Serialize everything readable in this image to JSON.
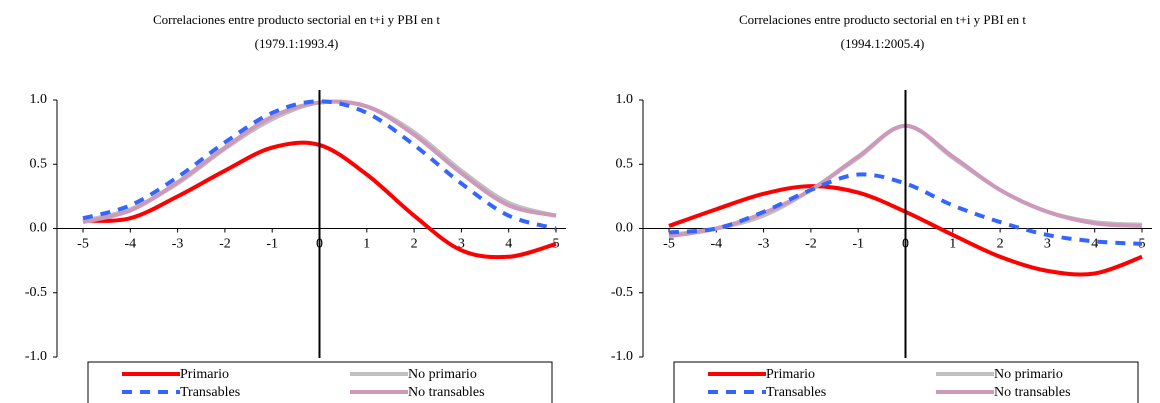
{
  "chart_data": [
    {
      "type": "line",
      "title": "Correlaciones entre producto sectorial en t+i y  PBI en t",
      "subtitle": "(1979.1:1993.4)",
      "x": [
        -5,
        -4,
        -3,
        -2,
        -1,
        0,
        1,
        2,
        3,
        4,
        5
      ],
      "xlim": [
        -5,
        5
      ],
      "xticks": [
        -5,
        -4,
        -3,
        -2,
        -1,
        0,
        1,
        2,
        3,
        4,
        5
      ],
      "ylim": [
        -1,
        1
      ],
      "yticks": [
        {
          "value": 1,
          "label": "1.0"
        },
        0.5,
        {
          "value": 0,
          "label": "0.0"
        },
        -0.5,
        {
          "value": -1,
          "label": "-1.0"
        }
      ],
      "legend": "bottom",
      "series": [
        {
          "name": "Primario",
          "color": "#ff0000",
          "style": "solid",
          "values": [
            0.06,
            0.08,
            0.25,
            0.45,
            0.63,
            0.65,
            0.42,
            0.1,
            -0.17,
            -0.22,
            -0.12
          ]
        },
        {
          "name": "No primario",
          "color": "#c0c0c0",
          "style": "solid",
          "values": [
            0.06,
            0.15,
            0.35,
            0.62,
            0.85,
            0.98,
            0.95,
            0.75,
            0.45,
            0.2,
            0.1
          ]
        },
        {
          "name": "Transables",
          "color": "#3366ff",
          "style": "dashed",
          "values": [
            0.08,
            0.18,
            0.4,
            0.67,
            0.9,
            0.99,
            0.9,
            0.65,
            0.35,
            0.1,
            0.0
          ]
        },
        {
          "name": "No transables",
          "color": "#cc99bb",
          "style": "solid",
          "values": [
            0.05,
            0.14,
            0.36,
            0.63,
            0.87,
            0.98,
            0.95,
            0.73,
            0.43,
            0.18,
            0.1
          ]
        }
      ]
    },
    {
      "type": "line",
      "title": "Correlaciones entre producto sectorial en t+i y  PBI en t",
      "subtitle": "(1994.1:2005.4)",
      "x": [
        -5,
        -4,
        -3,
        -2,
        -1,
        0,
        1,
        2,
        3,
        4,
        5
      ],
      "xlim": [
        -5,
        5
      ],
      "xticks": [
        -5,
        -4,
        -3,
        -2,
        -1,
        0,
        1,
        2,
        3,
        4,
        5
      ],
      "ylim": [
        -1,
        1
      ],
      "yticks": [
        {
          "value": 1,
          "label": "1.0"
        },
        0.5,
        {
          "value": 0,
          "label": "0.0"
        },
        -0.5,
        {
          "value": -1,
          "label": "-1.0"
        }
      ],
      "legend": "bottom",
      "series": [
        {
          "name": "Primario",
          "color": "#ff0000",
          "style": "solid",
          "values": [
            0.02,
            0.15,
            0.27,
            0.33,
            0.28,
            0.13,
            -0.05,
            -0.22,
            -0.33,
            -0.35,
            -0.22
          ]
        },
        {
          "name": "No primario",
          "color": "#c0c0c0",
          "style": "solid",
          "values": [
            -0.05,
            0.0,
            0.1,
            0.3,
            0.55,
            0.8,
            0.55,
            0.3,
            0.13,
            0.05,
            0.03
          ]
        },
        {
          "name": "Transables",
          "color": "#3366ff",
          "style": "dashed",
          "values": [
            -0.03,
            0.0,
            0.13,
            0.3,
            0.42,
            0.35,
            0.18,
            0.05,
            -0.05,
            -0.1,
            -0.12
          ]
        },
        {
          "name": "No transables",
          "color": "#cc99bb",
          "style": "solid",
          "values": [
            -0.06,
            0.0,
            0.12,
            0.3,
            0.56,
            0.8,
            0.56,
            0.3,
            0.13,
            0.04,
            0.02
          ]
        }
      ]
    }
  ]
}
